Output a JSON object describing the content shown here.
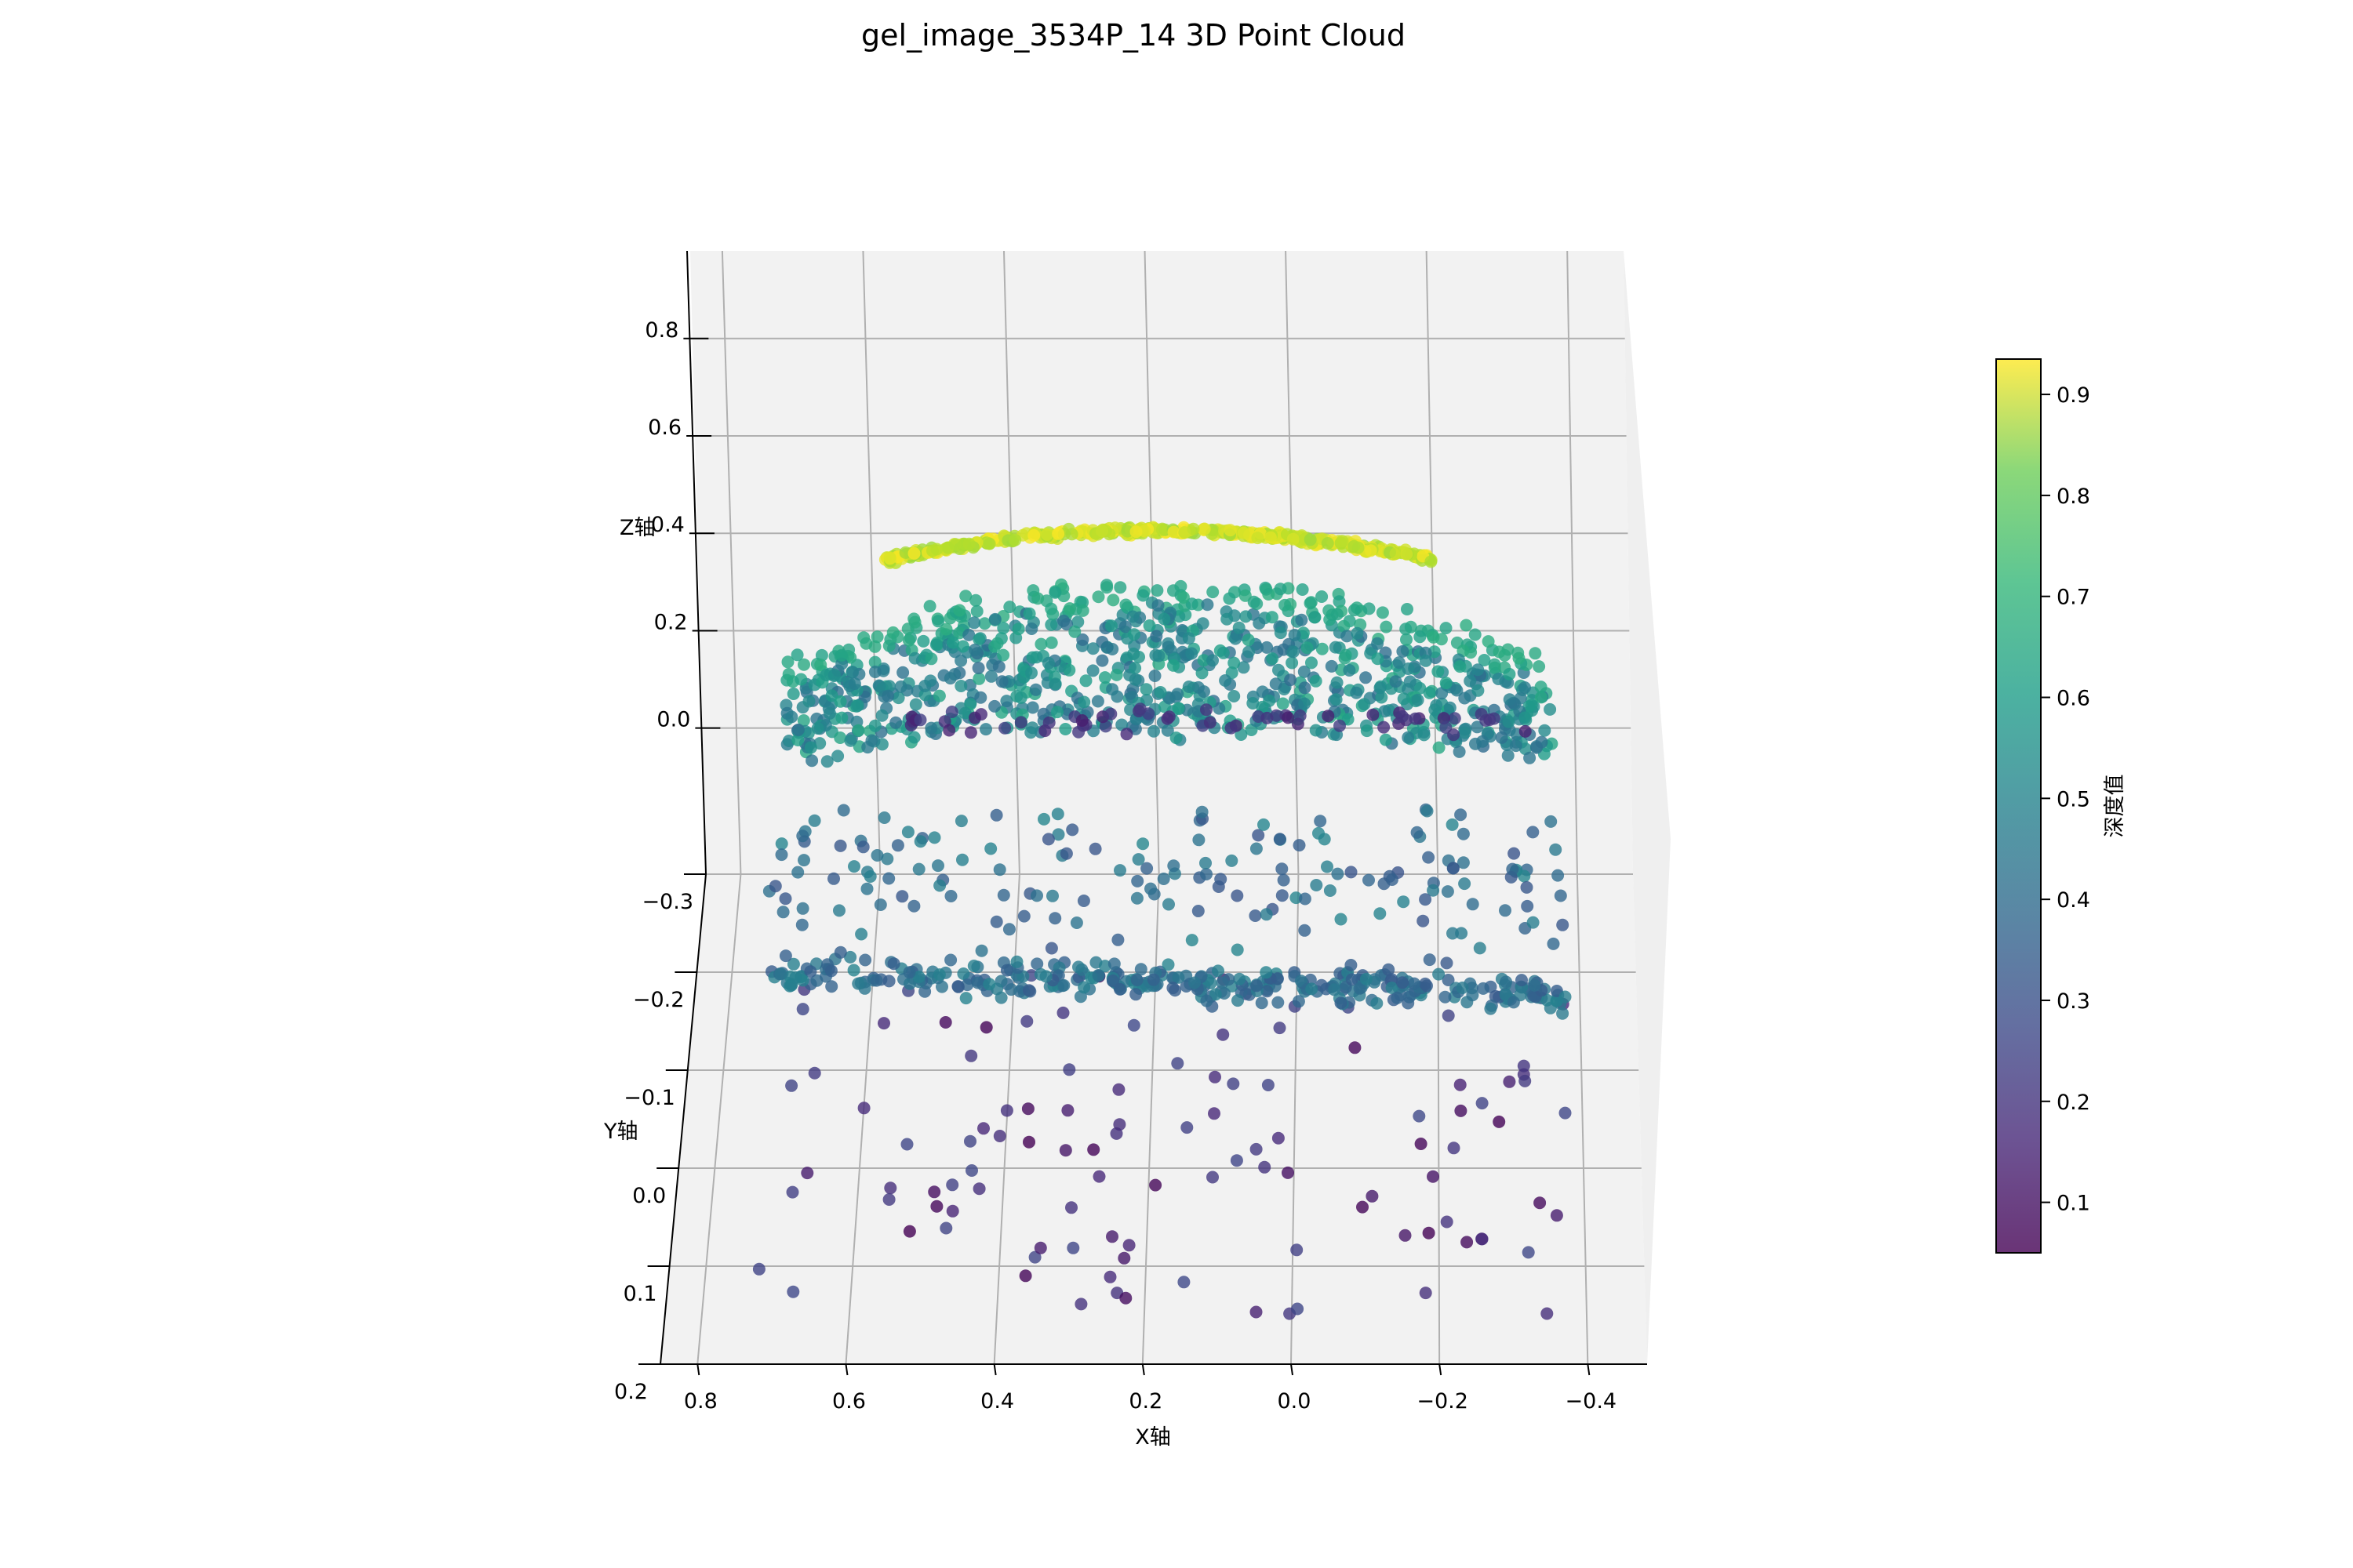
{
  "chart_data": {
    "type": "scatter",
    "projection": "3d",
    "title": "gel_image_3534P_14 3D Point Cloud",
    "xlabel": "X轴",
    "ylabel": "Y轴",
    "zlabel": "Z轴",
    "xlim": [
      0.85,
      -0.48
    ],
    "ylim": [
      0.2,
      -0.3
    ],
    "zlim": [
      -0.3,
      0.98
    ],
    "x_ticks": [
      "0.8",
      "0.6",
      "0.4",
      "0.2",
      "0.0",
      "−0.2",
      "−0.4"
    ],
    "y_ticks": [
      "−0.3",
      "−0.2",
      "−0.1",
      "0.0",
      "0.1",
      "0.2"
    ],
    "z_ticks": [
      "0.0",
      "0.2",
      "0.4",
      "0.6",
      "0.8"
    ],
    "colormap": "viridis",
    "colorbar": {
      "label": "深度值",
      "range": [
        0.05,
        0.935
      ],
      "ticks": [
        "0.1",
        "0.2",
        "0.3",
        "0.4",
        "0.5",
        "0.6",
        "0.7",
        "0.8",
        "0.9"
      ]
    },
    "grid": true,
    "pane_color": "#f2f2f2",
    "grid_color": "#b0b0b0",
    "marker_alpha": 0.8,
    "point_count": 1970,
    "series": [
      {
        "feature": "top ridge",
        "x_range": [
          0.6,
          -0.2
        ],
        "z_range": [
          0.42,
          0.52
        ],
        "color_value_range": [
          0.8,
          0.93
        ]
      },
      {
        "feature": "upper band",
        "x_range": [
          0.75,
          -0.34
        ],
        "z_range": [
          0.12,
          0.38
        ],
        "color_value_range": [
          0.42,
          0.62
        ]
      },
      {
        "feature": "lower front band",
        "x_range": [
          0.75,
          -0.38
        ],
        "y_range": [
          -0.25,
          -0.15
        ],
        "z": -0.3,
        "color_value_range": [
          0.28,
          0.45
        ]
      },
      {
        "feature": "floor scatter",
        "x_range": [
          0.75,
          -0.38
        ],
        "y_range": [
          -0.2,
          0.15
        ],
        "z": -0.3,
        "color_value_range": [
          0.05,
          0.3
        ]
      }
    ]
  }
}
